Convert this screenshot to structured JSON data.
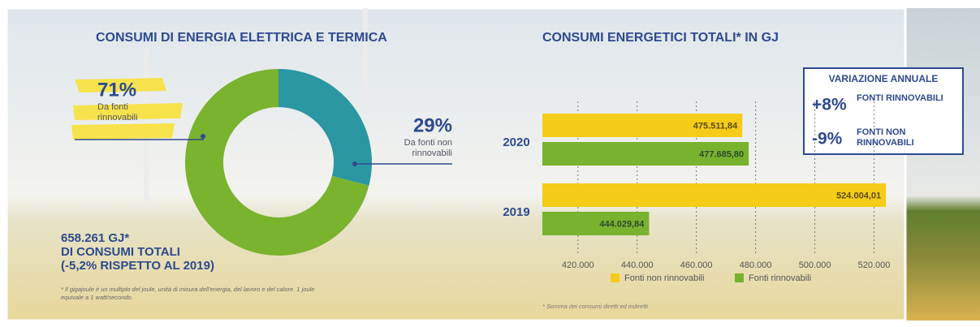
{
  "chart_data": [
    {
      "type": "donut",
      "title": "CONSUMI DI ENERGIA ELETTRICA E TERMICA",
      "categories": [
        "Da fonti rinnovabili",
        "Da fonti non rinnovabili"
      ],
      "values": [
        71,
        29
      ],
      "value_labels": [
        "71%",
        "29%"
      ],
      "colors": [
        "#7ab32e",
        "#2a97a3"
      ],
      "total_label": [
        "658.261 GJ*",
        "DI CONSUMI TOTALI",
        "(-5,2% RISPETTO AL 2019)"
      ],
      "footnote": "* Il gigajoule è un multiplo del joule, unità di misura dell'energia, del lavoro e del calore. 1 joule equivale a 1 watt/secondo."
    },
    {
      "type": "bar",
      "orientation": "horizontal",
      "title": "CONSUMI ENERGETICI TOTALI* IN GJ",
      "categories": [
        "2020",
        "2019"
      ],
      "series": [
        {
          "name": "Fonti non rinnovabili",
          "color": "#f5cc17",
          "values": [
            475511.84,
            524004.01
          ],
          "value_labels": [
            "475.511,84",
            "524.004,01"
          ]
        },
        {
          "name": "Fonti rinnovabili",
          "color": "#79b22f",
          "values": [
            477685.8,
            444029.84
          ],
          "value_labels": [
            "477.685,80",
            "444.029,84"
          ]
        }
      ],
      "xlim": [
        408000,
        530000
      ],
      "xticks": [
        {
          "value": 420000,
          "label": "420.000"
        },
        {
          "value": 440000,
          "label": "440.000"
        },
        {
          "value": 460000,
          "label": "460.000"
        },
        {
          "value": 480000,
          "label": "480.000"
        },
        {
          "value": 500000,
          "label": "500.000"
        },
        {
          "value": 520000,
          "label": "520.000"
        }
      ],
      "grid": true,
      "legend": "bottom",
      "footnote": "* Somma dei consumi diretti ed indiretti",
      "annotation": {
        "title": "VARIAZIONE ANNUALE",
        "items": [
          {
            "value": "+8%",
            "label": "FONTI RINNOVABILI"
          },
          {
            "value": "-9%",
            "label": "FONTI NON RINNOVABILI"
          }
        ]
      }
    }
  ]
}
